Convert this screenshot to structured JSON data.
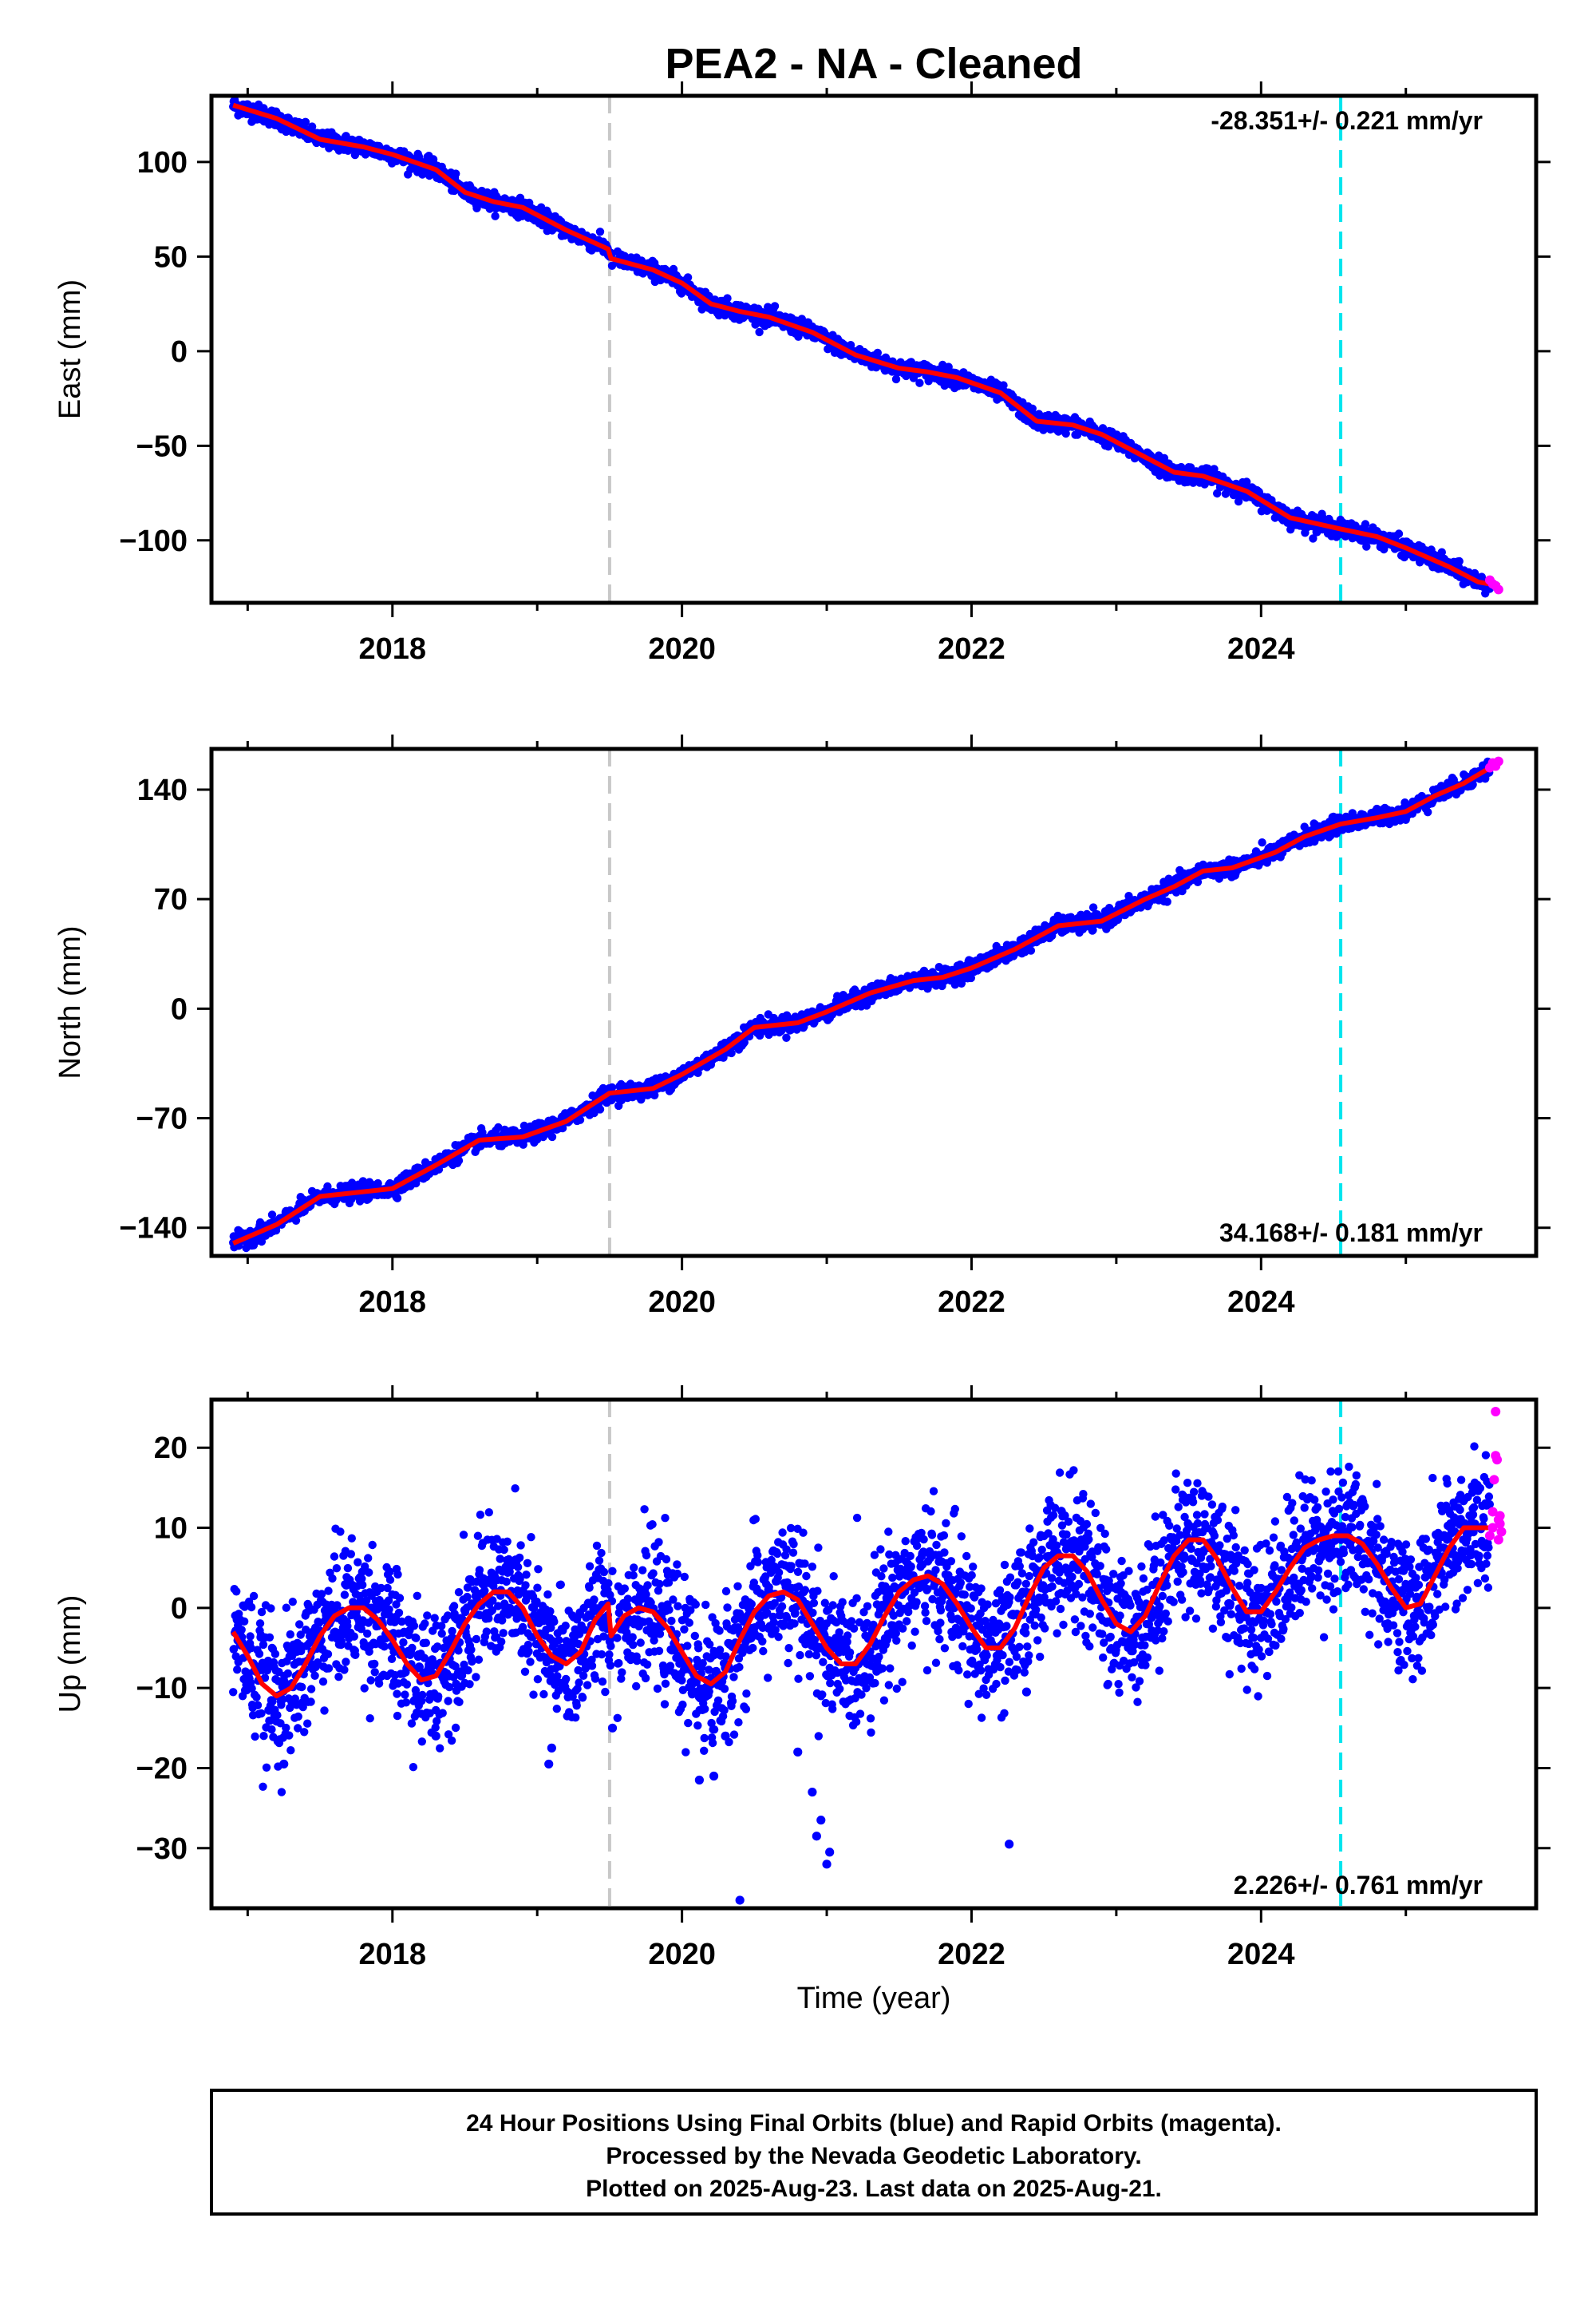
{
  "page": {
    "title": "PEA2  - NA - Cleaned",
    "xlabel": "Time (year)",
    "footer": [
      "24 Hour Positions Using Final Orbits (blue) and Rapid Orbits (magenta).",
      "Processed by the Nevada Geodetic Laboratory.",
      "Plotted on 2025-Aug-23. Last data on 2025-Aug-21."
    ]
  },
  "colors": {
    "final_points": "#0000ff",
    "rapid_points": "#ff00ff",
    "model_line": "#ff0000",
    "gray_line": "#c8c8c8",
    "cyan_line": "#00e5ee",
    "frame": "#000000"
  },
  "chart_data": [
    {
      "type": "scatter",
      "ylabel": "East (mm)",
      "rate": "-28.351+/- 0.221 mm/yr",
      "rate_position": "top-right",
      "xlim": [
        2016.75,
        2025.9
      ],
      "ylim": [
        -133,
        135
      ],
      "xticks": [
        2018,
        2020,
        2022,
        2024
      ],
      "yticks": [
        -100,
        -50,
        0,
        50,
        100
      ],
      "vlines": [
        {
          "x": 2019.5,
          "style": "gray"
        },
        {
          "x": 2024.55,
          "style": "cyan"
        }
      ],
      "model": {
        "x": [
          2016.9,
          2017.2,
          2017.5,
          2017.8,
          2018.0,
          2018.3,
          2018.5,
          2018.7,
          2018.9,
          2019.2,
          2019.49,
          2019.51,
          2019.8,
          2020.0,
          2020.2,
          2020.4,
          2020.6,
          2020.9,
          2021.2,
          2021.5,
          2021.7,
          2021.9,
          2022.2,
          2022.45,
          2022.7,
          2022.9,
          2023.15,
          2023.4,
          2023.6,
          2023.9,
          2024.2,
          2024.55,
          2024.8,
          2025.0,
          2025.3,
          2025.5,
          2025.65
        ],
        "y": [
          130,
          123,
          112,
          108,
          104,
          96,
          84,
          79,
          76,
          64,
          54,
          49,
          43,
          36,
          25,
          21,
          18,
          10,
          -2,
          -9,
          -11,
          -14,
          -22,
          -37,
          -39,
          -44,
          -54,
          -64,
          -66,
          -74,
          -88,
          -94,
          -98,
          -104,
          -114,
          -122,
          -124
        ]
      },
      "noise": 2.2,
      "rapid": {
        "x": [
          2025.58,
          2025.6,
          2025.62,
          2025.64
        ],
        "y": [
          -121,
          -123,
          -124,
          -126
        ]
      }
    },
    {
      "type": "scatter",
      "ylabel": "North (mm)",
      "rate": "34.168+/- 0.181 mm/yr",
      "rate_position": "bottom-right",
      "xlim": [
        2016.75,
        2025.9
      ],
      "ylim": [
        -158,
        166
      ],
      "xticks": [
        2018,
        2020,
        2022,
        2024
      ],
      "yticks": [
        -140,
        -70,
        0,
        70,
        140
      ],
      "vlines": [
        {
          "x": 2019.5,
          "style": "gray"
        },
        {
          "x": 2024.55,
          "style": "cyan"
        }
      ],
      "model": {
        "x": [
          2016.9,
          2017.2,
          2017.5,
          2017.8,
          2018.0,
          2018.3,
          2018.6,
          2018.9,
          2019.2,
          2019.5,
          2019.8,
          2020.0,
          2020.3,
          2020.5,
          2020.8,
          2021.0,
          2021.3,
          2021.6,
          2021.8,
          2022.0,
          2022.3,
          2022.6,
          2022.9,
          2023.2,
          2023.4,
          2023.6,
          2023.8,
          2024.1,
          2024.3,
          2024.55,
          2024.8,
          2025.0,
          2025.2,
          2025.4,
          2025.6
        ],
        "y": [
          -150,
          -138,
          -120,
          -117,
          -115,
          -100,
          -84,
          -82,
          -72,
          -54,
          -51,
          -42,
          -26,
          -12,
          -9,
          -2,
          10,
          18,
          20,
          26,
          38,
          53,
          56,
          70,
          78,
          88,
          90,
          100,
          110,
          118,
          122,
          126,
          136,
          144,
          155
        ]
      },
      "noise": 2.6,
      "rapid": {
        "x": [
          2025.58,
          2025.6,
          2025.62,
          2025.64
        ],
        "y": [
          154,
          157,
          155,
          158
        ]
      }
    },
    {
      "type": "scatter",
      "ylabel": "Up (mm)",
      "rate": "2.226+/- 0.761 mm/yr",
      "rate_position": "bottom-right",
      "xlim": [
        2016.75,
        2025.9
      ],
      "ylim": [
        -37.5,
        26
      ],
      "xticks": [
        2018,
        2020,
        2022,
        2024
      ],
      "yticks": [
        -30,
        -20,
        -10,
        0,
        10,
        20
      ],
      "vlines": [
        {
          "x": 2019.5,
          "style": "gray"
        },
        {
          "x": 2024.55,
          "style": "cyan"
        }
      ],
      "model": {
        "x": [
          2016.9,
          2017.0,
          2017.1,
          2017.2,
          2017.3,
          2017.4,
          2017.5,
          2017.6,
          2017.7,
          2017.8,
          2017.9,
          2018.0,
          2018.1,
          2018.2,
          2018.3,
          2018.4,
          2018.5,
          2018.6,
          2018.7,
          2018.8,
          2018.9,
          2019.0,
          2019.1,
          2019.2,
          2019.3,
          2019.4,
          2019.49,
          2019.51,
          2019.6,
          2019.7,
          2019.8,
          2019.9,
          2020.0,
          2020.1,
          2020.2,
          2020.3,
          2020.4,
          2020.5,
          2020.6,
          2020.7,
          2020.8,
          2020.9,
          2021.0,
          2021.1,
          2021.2,
          2021.3,
          2021.4,
          2021.5,
          2021.6,
          2021.7,
          2021.8,
          2021.9,
          2022.0,
          2022.1,
          2022.2,
          2022.3,
          2022.4,
          2022.5,
          2022.6,
          2022.7,
          2022.8,
          2022.9,
          2023.0,
          2023.1,
          2023.2,
          2023.3,
          2023.4,
          2023.5,
          2023.6,
          2023.7,
          2023.8,
          2023.9,
          2024.0,
          2024.1,
          2024.2,
          2024.3,
          2024.4,
          2024.5,
          2024.6,
          2024.7,
          2024.8,
          2024.9,
          2025.0,
          2025.1,
          2025.2,
          2025.3,
          2025.4,
          2025.5,
          2025.6
        ],
        "y": [
          -3,
          -6,
          -9.5,
          -11,
          -10,
          -7,
          -3.5,
          -1,
          0,
          0,
          -1.5,
          -4,
          -7,
          -9,
          -8.5,
          -5.5,
          -2,
          0.5,
          2,
          2,
          0,
          -3.5,
          -6,
          -7,
          -5.5,
          -1.5,
          0.5,
          -3.5,
          -1,
          0,
          -0.5,
          -2.5,
          -5.5,
          -8.5,
          -9.5,
          -8,
          -4,
          -0.5,
          1.5,
          2,
          1,
          -2,
          -5,
          -7,
          -7,
          -4.5,
          -1,
          2,
          3.5,
          4,
          3,
          0.5,
          -2.5,
          -5,
          -5,
          -2.5,
          1.5,
          5,
          6.5,
          6.5,
          4.5,
          1,
          -2,
          -3,
          -1,
          3,
          6.5,
          8.5,
          8.5,
          6,
          2.5,
          -0.5,
          -0.5,
          2,
          5,
          7.5,
          8.5,
          9,
          9,
          8,
          5.5,
          2.5,
          0,
          0.5,
          4,
          7.5,
          10,
          10,
          10
        ]
      },
      "noise": 4.2,
      "outliers": {
        "x": [
          2019.08,
          2019.1,
          2020.12,
          2020.22,
          2020.3,
          2020.4,
          2020.8,
          2020.9,
          2020.93,
          2020.96,
          2021.0,
          2021.02,
          2022.26,
          2022.38,
          2017.25,
          2018.3,
          2019.52
        ],
        "y": [
          -19.5,
          -17.5,
          -21.5,
          -21,
          -16,
          -36.5,
          -18,
          -23,
          -28.5,
          -26.5,
          -32,
          -30.5,
          -29.5,
          -10.5,
          -19.5,
          -16,
          -15
        ]
      },
      "rapid": {
        "x": [
          2025.58,
          2025.6,
          2025.6,
          2025.61,
          2025.62,
          2025.62,
          2025.63,
          2025.64,
          2025.64,
          2025.65,
          2025.65,
          2025.66
        ],
        "y": [
          9,
          10,
          12,
          16,
          19,
          24.5,
          18.5,
          11,
          8.5,
          10.5,
          11.5,
          9.5
        ]
      }
    }
  ]
}
